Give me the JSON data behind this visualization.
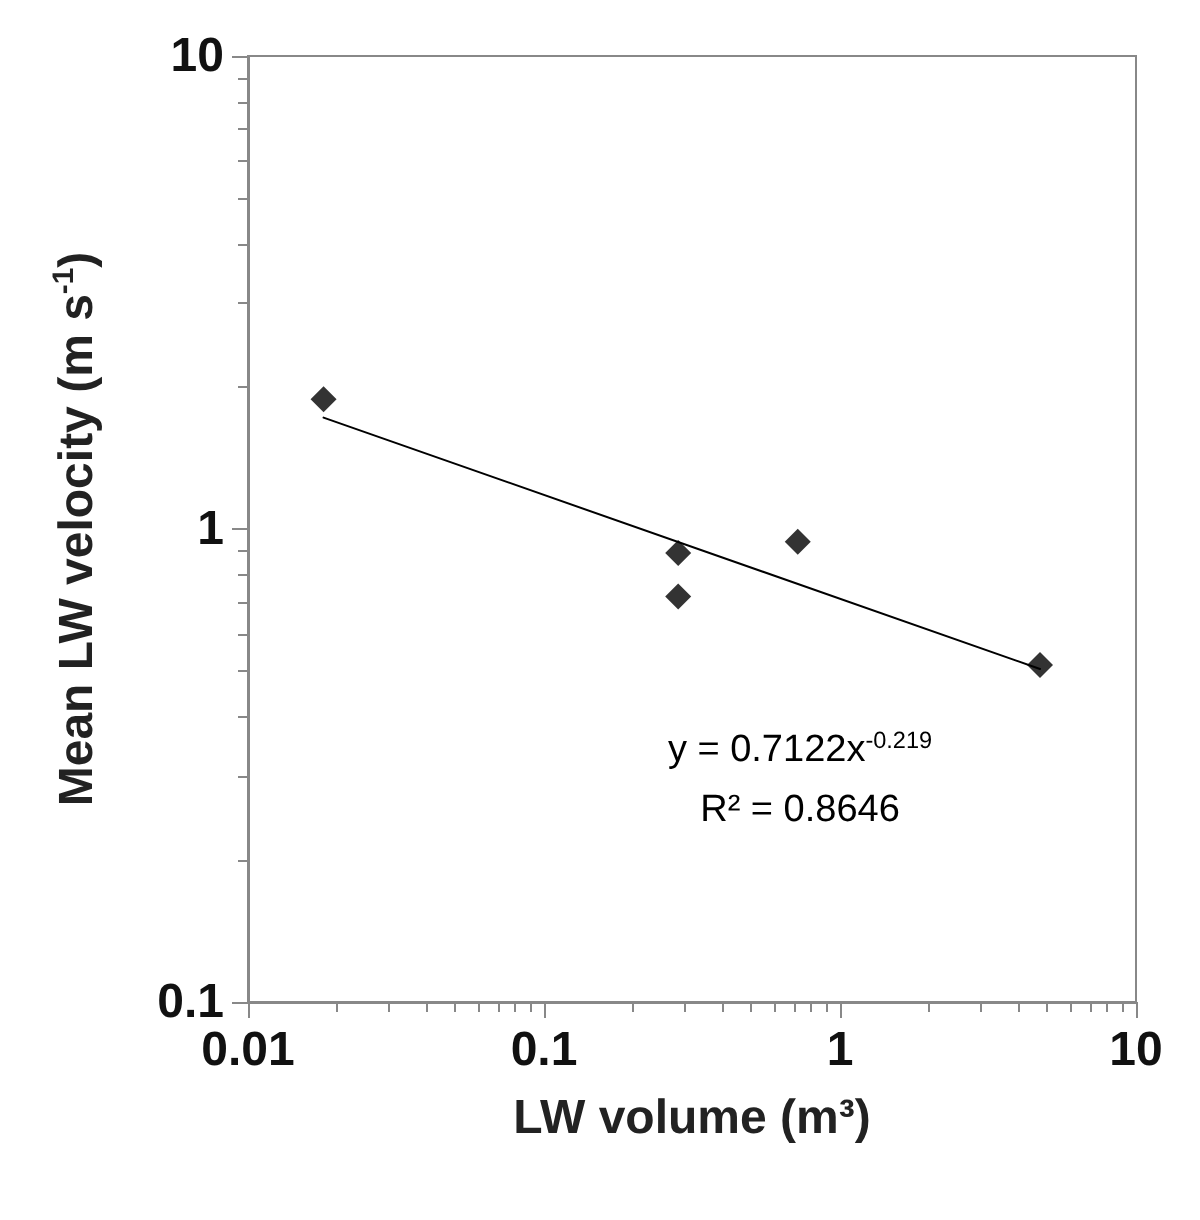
{
  "chart_data": {
    "type": "scatter",
    "xlabel": "LW volume (m³)",
    "ylabel": "Mean LW velocity (m s$^{-1}$)",
    "log": "xy",
    "xlim": [
      0.01,
      10
    ],
    "xticks": [
      0.01,
      0.1,
      1,
      10
    ],
    "ylim": [
      0.1,
      10
    ],
    "yticks": [
      0.1,
      1,
      10
    ],
    "grid": false,
    "marker": "diamond",
    "series": [
      {
        "color": "#000000",
        "x": [
          0.018,
          0.284,
          0.284,
          0.72,
          4.74
        ],
        "values": [
          1.88,
          0.89,
          0.72,
          0.94,
          0.516
        ]
      },
      {
        "type": "line",
        "color": "#000000",
        "marker": "none",
        "line_style": "solid",
        "x": [
          0.018,
          4.74
        ],
        "values": [
          1.72,
          0.506
        ]
      }
    ],
    "annotations": [
      "y = 0.7122x$^{-0.219}$",
      "R² = 0.8646"
    ]
  }
}
